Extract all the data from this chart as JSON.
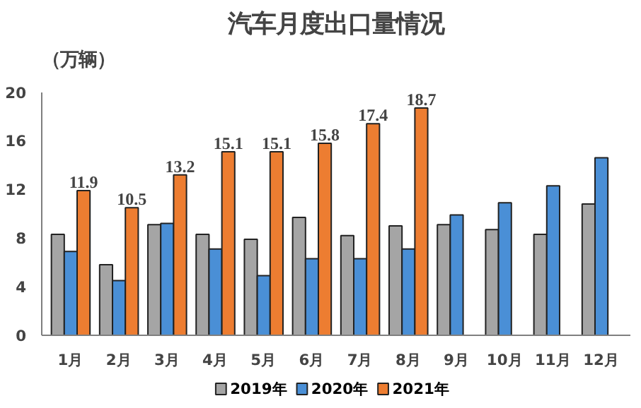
{
  "chart_data": {
    "type": "bar",
    "title": "汽车月度出口量情况",
    "ylabel": "（万辆）",
    "categories": [
      "1月",
      "2月",
      "3月",
      "4月",
      "5月",
      "6月",
      "7月",
      "8月",
      "9月",
      "10月",
      "11月",
      "12月"
    ],
    "series": [
      {
        "name": "2019年",
        "color": "#a5a5a5",
        "values": [
          8.3,
          5.8,
          9.1,
          8.3,
          7.9,
          9.7,
          8.2,
          9.0,
          9.1,
          8.7,
          8.3,
          10.8
        ]
      },
      {
        "name": "2020年",
        "color": "#4a8fd6",
        "values": [
          6.9,
          4.5,
          9.2,
          7.1,
          4.9,
          6.3,
          6.3,
          7.1,
          9.9,
          10.9,
          12.3,
          14.6
        ]
      },
      {
        "name": "2021年",
        "color": "#ed7d31",
        "values": [
          11.9,
          10.5,
          13.2,
          15.1,
          15.1,
          15.8,
          17.4,
          18.7,
          null,
          null,
          null,
          null
        ],
        "value_labels": [
          "11.9",
          "10.5",
          "13.2",
          "15.1",
          "15.1",
          "15.8",
          "17.4",
          "18.7",
          null,
          null,
          null,
          null
        ]
      }
    ],
    "ylim": [
      0,
      20
    ],
    "yticks": [
      0,
      4,
      8,
      12,
      16,
      20
    ],
    "grid": false,
    "legend": "bottom"
  }
}
